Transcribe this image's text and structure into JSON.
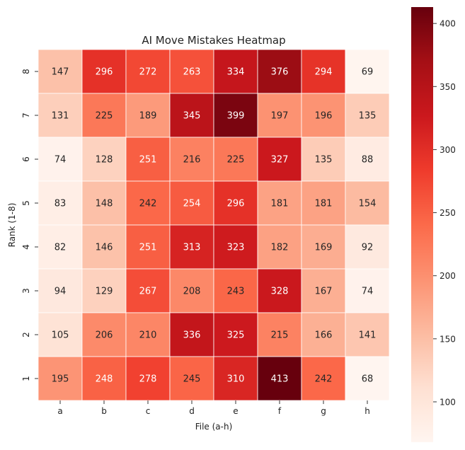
{
  "chart_data": {
    "type": "heatmap",
    "title": "AI Move Mistakes Heatmap",
    "xlabel": "File (a-h)",
    "ylabel": "Rank (1-8)",
    "x_categories": [
      "a",
      "b",
      "c",
      "d",
      "e",
      "f",
      "g",
      "h"
    ],
    "y_categories": [
      "8",
      "7",
      "6",
      "5",
      "4",
      "3",
      "2",
      "1"
    ],
    "values": [
      [
        147,
        296,
        272,
        263,
        334,
        376,
        294,
        69
      ],
      [
        131,
        225,
        189,
        345,
        399,
        197,
        196,
        135
      ],
      [
        74,
        128,
        251,
        216,
        225,
        327,
        135,
        88
      ],
      [
        83,
        148,
        242,
        254,
        296,
        181,
        181,
        154
      ],
      [
        82,
        146,
        251,
        313,
        323,
        182,
        169,
        92
      ],
      [
        94,
        129,
        267,
        208,
        243,
        328,
        167,
        74
      ],
      [
        105,
        206,
        210,
        336,
        325,
        215,
        166,
        141
      ],
      [
        195,
        248,
        278,
        245,
        310,
        413,
        242,
        68
      ]
    ],
    "value_range": [
      68,
      413
    ],
    "colormap": "Reds",
    "colorbar_ticks": [
      100,
      150,
      200,
      250,
      300,
      350,
      400
    ],
    "annotations": true,
    "grid": false
  }
}
